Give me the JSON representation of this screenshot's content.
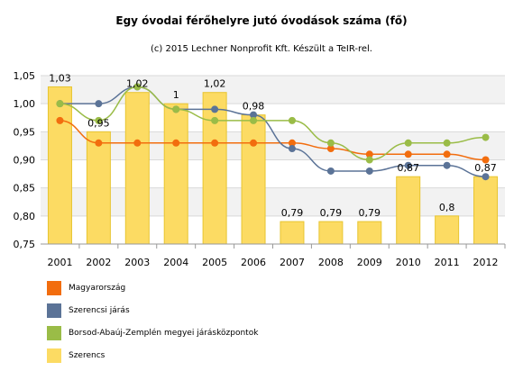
{
  "chart_data": {
    "type": "bar",
    "title": "Egy óvodai férőhelyre jutó óvodások száma (fő)",
    "subtitle": "(c) 2015 Lechner Nonprofit Kft. Készült a TeIR-rel.",
    "categories": [
      "2001",
      "2002",
      "2003",
      "2004",
      "2005",
      "2006",
      "2007",
      "2008",
      "2009",
      "2010",
      "2011",
      "2012"
    ],
    "ylim": [
      0.75,
      1.05
    ],
    "yticks": [
      "0,75",
      "0,80",
      "0,85",
      "0,90",
      "0,95",
      "1,00",
      "1,05"
    ],
    "ytick_values": [
      0.75,
      0.8,
      0.85,
      0.9,
      0.95,
      1.0,
      1.05
    ],
    "grid": true,
    "legend_position": "bottom-left",
    "series": [
      {
        "name": "Magyarország",
        "type": "line",
        "color": "#f26d0e",
        "values": [
          0.97,
          0.93,
          0.93,
          0.93,
          0.93,
          0.93,
          0.93,
          0.92,
          0.91,
          0.91,
          0.91,
          0.9
        ]
      },
      {
        "name": "Szerencsi járás",
        "type": "line",
        "color": "#5b7397",
        "values": [
          1.0,
          1.0,
          1.03,
          0.99,
          0.99,
          0.98,
          0.92,
          0.88,
          0.88,
          0.89,
          0.89,
          0.87
        ]
      },
      {
        "name": "Borsod-Abaúj-Zemplén megyei járásközpontok",
        "type": "line",
        "color": "#9abc47",
        "values": [
          1.0,
          0.97,
          1.03,
          0.99,
          0.97,
          0.97,
          0.97,
          0.93,
          0.9,
          0.93,
          0.93,
          0.94
        ]
      },
      {
        "name": "Szerencs",
        "type": "bar",
        "color": "#fcdb63",
        "values": [
          1.03,
          0.95,
          1.02,
          1.0,
          1.02,
          0.98,
          0.79,
          0.79,
          0.79,
          0.87,
          0.8,
          0.87
        ],
        "data_labels": [
          "1,03",
          "0,95",
          "1,02",
          "1",
          "1,02",
          "0,98",
          "0,79",
          "0,79",
          "0,79",
          "0,87",
          "0,8",
          "0,87"
        ]
      }
    ]
  }
}
